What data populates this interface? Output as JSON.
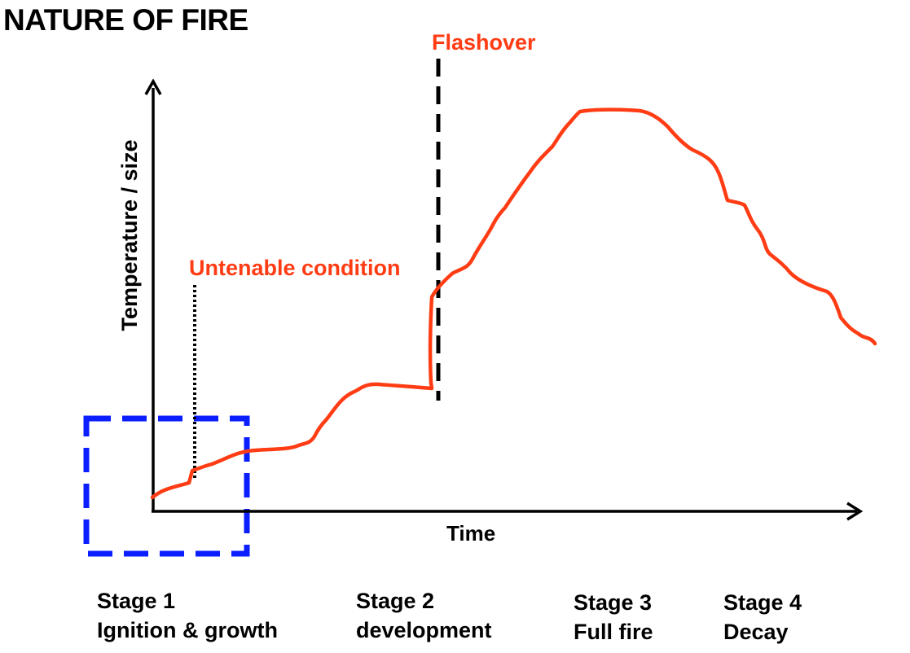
{
  "title": "NATURE OF FIRE",
  "axes": {
    "y_label": "Temperature / size",
    "x_label": "Time"
  },
  "annotations": {
    "flashover": "Flashover",
    "untenable": "Untenable condition"
  },
  "stages": [
    {
      "name": "Stage 1",
      "desc": "Ignition & growth"
    },
    {
      "name": "Stage 2",
      "desc": "development"
    },
    {
      "name": "Stage 3",
      "desc": "Full fire"
    },
    {
      "name": "Stage 4",
      "desc": "Decay"
    }
  ],
  "colors": {
    "curve": "#ff3c14",
    "highlight_box": "#0a1eff",
    "axis": "#000000",
    "annotation_text": "#ff3c14"
  }
}
